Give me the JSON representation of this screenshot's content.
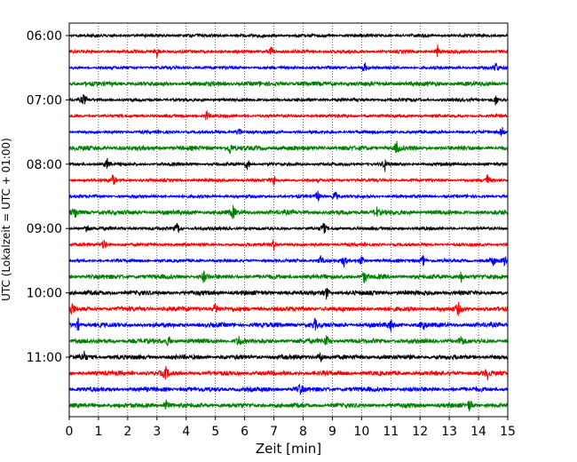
{
  "chart_data": {
    "type": "line",
    "xlabel": "Zeit  [min]",
    "ylabel": "UTC (Lokalzeit = UTC + 01:00)",
    "xlim": [
      0,
      15
    ],
    "x_ticks": [
      "0",
      "1",
      "2",
      "3",
      "4",
      "5",
      "6",
      "7",
      "8",
      "9",
      "10",
      "11",
      "12",
      "13",
      "14",
      "15"
    ],
    "y_ticks": [
      "06:00",
      "07:00",
      "08:00",
      "09:00",
      "10:00",
      "11:00"
    ],
    "grid": "vertical dotted lines at each minute",
    "trace_colors": [
      "#000000",
      "#ff0000",
      "#0000ff",
      "#008000"
    ],
    "trace_start_hour": "06:00",
    "trace_interval_min": 15,
    "trace_count": 24,
    "traces": [
      {
        "label": "06:00",
        "color": "#000000",
        "events": []
      },
      {
        "label": "06:15",
        "color": "#ff0000",
        "events": [
          3.0,
          6.9,
          12.6
        ]
      },
      {
        "label": "06:30",
        "color": "#0000ff",
        "events": [
          10.1,
          14.6
        ]
      },
      {
        "label": "06:45",
        "color": "#008000",
        "events": []
      },
      {
        "label": "07:00",
        "color": "#000000",
        "events": [
          0.5,
          14.6
        ]
      },
      {
        "label": "07:15",
        "color": "#ff0000",
        "events": [
          4.7
        ]
      },
      {
        "label": "07:30",
        "color": "#0000ff",
        "events": [
          5.8,
          14.8
        ]
      },
      {
        "label": "07:45",
        "color": "#008000",
        "events": [
          5.5,
          11.2
        ]
      },
      {
        "label": "08:00",
        "color": "#000000",
        "events": [
          1.3,
          6.1,
          10.8
        ]
      },
      {
        "label": "08:15",
        "color": "#ff0000",
        "events": [
          1.5,
          7.0,
          14.3
        ]
      },
      {
        "label": "08:30",
        "color": "#0000ff",
        "events": [
          8.5,
          9.1
        ]
      },
      {
        "label": "08:45",
        "color": "#008000",
        "events": [
          0.2,
          5.6,
          10.5
        ]
      },
      {
        "label": "09:00",
        "color": "#000000",
        "events": [
          0.6,
          3.7,
          8.7
        ]
      },
      {
        "label": "09:15",
        "color": "#ff0000",
        "events": [
          1.2,
          7.0
        ]
      },
      {
        "label": "09:30",
        "color": "#0000ff",
        "events": [
          8.6,
          9.4,
          10.0,
          12.1,
          14.5,
          14.9
        ]
      },
      {
        "label": "09:45",
        "color": "#008000",
        "events": [
          4.6,
          10.1,
          13.4
        ]
      },
      {
        "label": "10:00",
        "color": "#000000",
        "events": [
          8.8
        ]
      },
      {
        "label": "10:15",
        "color": "#ff0000",
        "events": [
          0.1,
          5.0,
          13.3
        ]
      },
      {
        "label": "10:30",
        "color": "#0000ff",
        "events": [
          0.3,
          8.4,
          11.0,
          12.1
        ]
      },
      {
        "label": "10:45",
        "color": "#008000",
        "events": [
          3.4,
          5.8,
          8.8,
          13.4
        ]
      },
      {
        "label": "11:00",
        "color": "#000000",
        "events": [
          0.5,
          8.6
        ]
      },
      {
        "label": "11:15",
        "color": "#ff0000",
        "events": [
          3.3,
          14.3
        ]
      },
      {
        "label": "11:30",
        "color": "#0000ff",
        "events": [
          7.9
        ]
      },
      {
        "label": "11:45",
        "color": "#008000",
        "events": [
          3.3,
          13.7
        ]
      }
    ]
  }
}
